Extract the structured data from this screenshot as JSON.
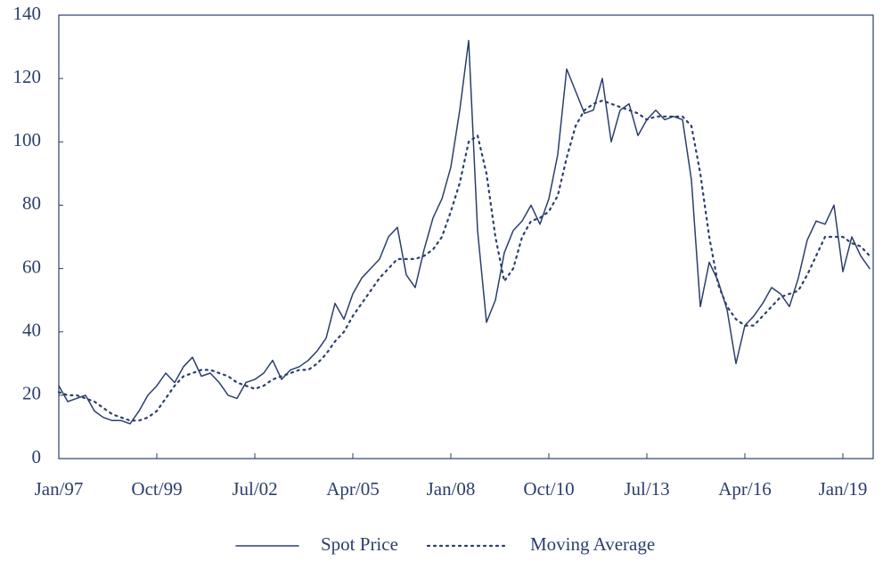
{
  "chart_data": {
    "type": "line",
    "x": [
      "Jan/97",
      "Apr/97",
      "Jul/97",
      "Oct/97",
      "Jan/98",
      "Apr/98",
      "Jul/98",
      "Oct/98",
      "Jan/99",
      "Apr/99",
      "Jul/99",
      "Oct/99",
      "Jan/00",
      "Apr/00",
      "Jul/00",
      "Oct/00",
      "Jan/01",
      "Apr/01",
      "Jul/01",
      "Oct/01",
      "Jan/02",
      "Apr/02",
      "Jul/02",
      "Oct/02",
      "Jan/03",
      "Apr/03",
      "Jul/03",
      "Oct/03",
      "Jan/04",
      "Apr/04",
      "Jul/04",
      "Oct/04",
      "Jan/05",
      "Apr/05",
      "Jul/05",
      "Oct/05",
      "Jan/06",
      "Apr/06",
      "Jul/06",
      "Oct/06",
      "Jan/07",
      "Apr/07",
      "Jul/07",
      "Oct/07",
      "Jan/08",
      "Apr/08",
      "Jul/08",
      "Oct/08",
      "Jan/09",
      "Apr/09",
      "Jul/09",
      "Oct/09",
      "Jan/10",
      "Apr/10",
      "Jul/10",
      "Oct/10",
      "Jan/11",
      "Apr/11",
      "Jul/11",
      "Oct/11",
      "Jan/12",
      "Apr/12",
      "Jul/12",
      "Oct/12",
      "Jan/13",
      "Apr/13",
      "Jul/13",
      "Oct/13",
      "Jan/14",
      "Apr/14",
      "Jul/14",
      "Oct/14",
      "Jan/15",
      "Apr/15",
      "Jul/15",
      "Oct/15",
      "Jan/16",
      "Apr/16",
      "Jul/16",
      "Oct/16",
      "Jan/17",
      "Apr/17",
      "Jul/17",
      "Oct/17",
      "Jan/18",
      "Apr/18",
      "Jul/18",
      "Oct/18",
      "Jan/19",
      "Apr/19",
      "Jul/19",
      "Oct/19"
    ],
    "series": [
      {
        "name": "Spot Price",
        "color": "#2b3f6c",
        "dash": "solid",
        "values": [
          23,
          18,
          19,
          20,
          15,
          13,
          12,
          12,
          11,
          15,
          20,
          23,
          27,
          24,
          29,
          32,
          26,
          27,
          24,
          20,
          19,
          24,
          25,
          27,
          31,
          25,
          28,
          29,
          31,
          34,
          38,
          49,
          44,
          52,
          57,
          60,
          63,
          70,
          73,
          58,
          54,
          66,
          76,
          82,
          92,
          110,
          132,
          72,
          43,
          50,
          65,
          72,
          75,
          80,
          74,
          82,
          96,
          123,
          116,
          109,
          110,
          120,
          100,
          110,
          112,
          102,
          107,
          110,
          107,
          108,
          107,
          88,
          48,
          62,
          56,
          47,
          30,
          42,
          45,
          49,
          54,
          52,
          48,
          57,
          69,
          75,
          74,
          80,
          59,
          70,
          64,
          60
        ]
      },
      {
        "name": "Moving Average",
        "color": "#2b3f6c",
        "dash": "dotted",
        "values": [
          21,
          20,
          20,
          19,
          18,
          16,
          14,
          13,
          12,
          12,
          13,
          15,
          19,
          23,
          26,
          27,
          28,
          28,
          27,
          26,
          24,
          23,
          22,
          23,
          25,
          26,
          27,
          28,
          28,
          30,
          33,
          37,
          40,
          45,
          49,
          53,
          57,
          60,
          63,
          63,
          63,
          64,
          66,
          70,
          78,
          87,
          100,
          102,
          90,
          70,
          56,
          60,
          70,
          75,
          76,
          78,
          83,
          95,
          105,
          110,
          112,
          113,
          112,
          111,
          110,
          109,
          107,
          108,
          108,
          108,
          108,
          105,
          90,
          70,
          55,
          48,
          44,
          42,
          42,
          45,
          48,
          51,
          52,
          53,
          58,
          64,
          70,
          70,
          70,
          68,
          67,
          64
        ]
      }
    ],
    "xticks": [
      "Jan/97",
      "Oct/99",
      "Jul/02",
      "Apr/05",
      "Jan/08",
      "Oct/10",
      "Jul/13",
      "Apr/16",
      "Jan/19"
    ],
    "ylim": [
      0,
      140
    ],
    "yticks": [
      0,
      20,
      40,
      60,
      80,
      100,
      120,
      140
    ],
    "legend": "bottom"
  }
}
